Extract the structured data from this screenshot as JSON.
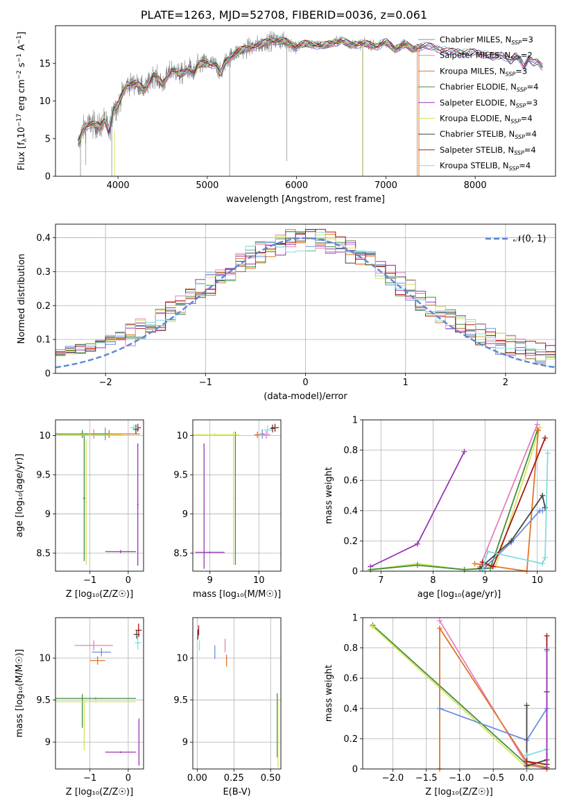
{
  "figure": {
    "title": "PLATE=1263, MJD=52708, FIBERID=0036, z=0.061"
  },
  "colors": {
    "Chabrier MILES": "#6a8fdf",
    "Salpeter MILES": "#e47fc0",
    "Kroupa MILES": "#e07426",
    "Chabrier ELODIE": "#3f8f3f",
    "Salpeter ELODIE": "#9a33b5",
    "Kroupa ELODIE": "#d8e458",
    "Chabrier STELIB": "#444444",
    "Salpeter STELIB": "#a4161a",
    "Kroupa STELIB": "#7fdedd",
    "data": "#808080",
    "normal": "#5b86d8",
    "grid": "#b0b0b0"
  },
  "chart_data": [
    {
      "id": "spectrum",
      "type": "line",
      "xlabel": "wavelength [Angstrom, rest frame]",
      "ylabel": "Flux [f_λ10^-17 erg cm^-2 s^-1 A^-1]",
      "xlim": [
        3300,
        8900
      ],
      "ylim": [
        0,
        20
      ],
      "xticks": [
        4000,
        5000,
        6000,
        7000,
        8000
      ],
      "yticks": [
        0,
        5,
        10,
        15
      ],
      "grid": false,
      "legend_position": "right",
      "legend": [
        {
          "name": "Chabrier MILES",
          "label": "Chabrier MILES, N",
          "nssp": "=3"
        },
        {
          "name": "Salpeter MILES",
          "label": "Salpeter MILES, N",
          "nssp": "=2"
        },
        {
          "name": "Kroupa MILES",
          "label": "Kroupa MILES, N",
          "nssp": "=3"
        },
        {
          "name": "Chabrier ELODIE",
          "label": "Chabrier ELODIE, N",
          "nssp": "=4"
        },
        {
          "name": "Salpeter ELODIE",
          "label": "Salpeter ELODIE, N",
          "nssp": "=3"
        },
        {
          "name": "Kroupa ELODIE",
          "label": "Kroupa ELODIE, N",
          "nssp": "=4"
        },
        {
          "name": "Chabrier STELIB",
          "label": "Chabrier STELIB, N",
          "nssp": "=4"
        },
        {
          "name": "Salpeter STELIB",
          "label": "Salpeter STELIB, N",
          "nssp": "=4"
        },
        {
          "name": "Kroupa STELIB",
          "label": "Kroupa STELIB, N",
          "nssp": "=4"
        }
      ],
      "continuum": {
        "x": [
          3550,
          3600,
          3650,
          3700,
          3800,
          3850,
          3900,
          3950,
          4000,
          4050,
          4100,
          4200,
          4300,
          4400,
          4500,
          4600,
          4700,
          4800,
          4850,
          4900,
          5000,
          5100,
          5150,
          5200,
          5300,
          5400,
          5500,
          5600,
          5700,
          5800,
          5900,
          6000,
          6100,
          6200,
          6300,
          6400,
          6500,
          6600,
          6700,
          6800,
          6900,
          7000,
          7100,
          7200,
          7300,
          7400,
          7500,
          7600,
          7700,
          7800,
          7900,
          8000,
          8100,
          8200,
          8300,
          8400,
          8450,
          8500,
          8550,
          8600,
          8650,
          8700,
          8750
        ],
        "y": [
          4.0,
          6.0,
          6.8,
          7.0,
          6.5,
          7.6,
          5.8,
          9.0,
          9.4,
          11.0,
          12.2,
          12.3,
          11.5,
          13.5,
          12.2,
          14.2,
          13.5,
          14.3,
          13.6,
          14.8,
          15.0,
          14.8,
          13.5,
          15.2,
          16.3,
          16.8,
          17.2,
          17.5,
          18.0,
          18.0,
          17.8,
          17.2,
          17.6,
          17.5,
          17.3,
          17.7,
          18.0,
          17.5,
          17.6,
          17.5,
          17.3,
          17.8,
          16.9,
          17.6,
          16.9,
          17.3,
          17.2,
          16.9,
          16.5,
          16.6,
          16.3,
          16.5,
          16.2,
          15.8,
          16.2,
          15.2,
          16.0,
          15.6,
          14.6,
          15.6,
          15.0,
          15.2,
          14.6
        ]
      },
      "data_range": [
        3550,
        7400
      ]
    },
    {
      "id": "residuals",
      "type": "line",
      "xlabel": "(data-model)/error",
      "ylabel": "Normed distribution",
      "xlim": [
        -2.5,
        2.5
      ],
      "ylim": [
        0,
        0.44
      ],
      "xticks": [
        -2,
        -1,
        0,
        1,
        2
      ],
      "yticks": [
        0.0,
        0.1,
        0.2,
        0.3,
        0.4
      ],
      "grid": true,
      "legend_position": "top-right",
      "legend": [
        {
          "name": "𝒩(0, 1)"
        }
      ],
      "bin_width": 0.1
    },
    {
      "id": "age-vs-Z",
      "type": "scatter",
      "xlabel": "Z [log₁₀(Z/Z☉)]",
      "ylabel": "age  [log₁₀(age/yr)]",
      "xlim": [
        -1.9,
        0.4
      ],
      "ylim": [
        8.27,
        10.2
      ],
      "xticks": [
        -1,
        0
      ],
      "yticks": [
        8.5,
        9.0,
        9.5,
        10.0
      ],
      "grid": true,
      "points": [
        {
          "name": "Chabrier MILES",
          "x": -0.6,
          "y": 10.02,
          "xerr": 0.3,
          "yerr": 0.08
        },
        {
          "name": "Salpeter MILES",
          "x": -0.9,
          "y": 10.02,
          "xerr": 0.4,
          "yerr": 0.06
        },
        {
          "name": "Kroupa MILES",
          "x": -0.5,
          "y": 10.02,
          "xerr": 0.8,
          "yerr": 0.05
        },
        {
          "name": "Chabrier ELODIE",
          "x": -1.2,
          "y": 10.02,
          "xerr": 0.7,
          "yerr": 0.05
        },
        {
          "name": "Chabrier ELODIE",
          "x": -1.15,
          "y": 9.2,
          "xerr": 0.03,
          "yerr": 0.8
        },
        {
          "name": "Kroupa ELODIE",
          "x": -1.1,
          "y": 9.15,
          "xerr": 0.03,
          "yerr": 0.8
        },
        {
          "name": "Kroupa ELODIE",
          "x": -1.0,
          "y": 10.01,
          "xerr": 0.85,
          "yerr": 0.02
        },
        {
          "name": "Salpeter ELODIE",
          "x": 0.25,
          "y": 9.12,
          "xerr": 0.02,
          "yerr": 0.78
        },
        {
          "name": "Salpeter ELODIE",
          "x": -0.2,
          "y": 8.52,
          "xerr": 0.4,
          "yerr": 0.02
        },
        {
          "name": "Chabrier STELIB",
          "x": 0.2,
          "y": 10.08,
          "xerr": 0.08,
          "yerr": 0.06
        },
        {
          "name": "Salpeter STELIB",
          "x": 0.25,
          "y": 10.1,
          "xerr": 0.08,
          "yerr": 0.05
        },
        {
          "name": "Kroupa STELIB",
          "x": 0.15,
          "y": 10.1,
          "xerr": 0.1,
          "yerr": 0.04
        }
      ]
    },
    {
      "id": "age-vs-mass",
      "type": "scatter",
      "xlabel": "mass [log₁₀(M/M☉)]",
      "ylabel": "",
      "xlim": [
        8.65,
        10.45
      ],
      "ylim": [
        8.27,
        10.2
      ],
      "xticks": [
        9,
        10
      ],
      "yticks": [
        8.5,
        9.0,
        9.5,
        10.0
      ],
      "grid": true,
      "points": [
        {
          "name": "Chabrier MILES",
          "x": 10.07,
          "y": 10.02,
          "xerr": 0.05,
          "yerr": 0.06
        },
        {
          "name": "Salpeter MILES",
          "x": 10.15,
          "y": 10.01,
          "xerr": 0.08,
          "yerr": 0.05
        },
        {
          "name": "Kroupa MILES",
          "x": 9.97,
          "y": 10.01,
          "xerr": 0.06,
          "yerr": 0.04
        },
        {
          "name": "Chabrier ELODIE",
          "x": 9.52,
          "y": 9.2,
          "xerr": 0.01,
          "yerr": 0.85
        },
        {
          "name": "Kroupa ELODIE",
          "x": 9.48,
          "y": 9.2,
          "xerr": 0.01,
          "yerr": 0.85
        },
        {
          "name": "Kroupa ELODIE",
          "x": 9.1,
          "y": 10.01,
          "xerr": 0.5,
          "yerr": 0.02
        },
        {
          "name": "Salpeter ELODIE",
          "x": 8.88,
          "y": 9.1,
          "xerr": 0.01,
          "yerr": 0.8
        },
        {
          "name": "Salpeter ELODIE",
          "x": 9.0,
          "y": 8.51,
          "xerr": 0.3,
          "yerr": 0.01
        },
        {
          "name": "Chabrier STELIB",
          "x": 10.28,
          "y": 10.09,
          "xerr": 0.05,
          "yerr": 0.05
        },
        {
          "name": "Salpeter STELIB",
          "x": 10.33,
          "y": 10.1,
          "xerr": 0.08,
          "yerr": 0.05
        },
        {
          "name": "Kroupa STELIB",
          "x": 10.18,
          "y": 10.07,
          "xerr": 0.08,
          "yerr": 0.06
        }
      ]
    },
    {
      "id": "weight-vs-age",
      "type": "line",
      "xlabel": "age  [log₁₀(age/yr)]",
      "ylabel": "mass weight",
      "xlim": [
        6.65,
        10.35
      ],
      "ylim": [
        0,
        1
      ],
      "xticks": [
        7,
        8,
        9,
        10
      ],
      "yticks": [
        0.0,
        0.2,
        0.4,
        0.6,
        0.8,
        1.0
      ],
      "grid": true,
      "series": [
        {
          "name": "Salpeter ELODIE",
          "x": [
            6.8,
            7.7,
            8.6
          ],
          "y": [
            0.03,
            0.18,
            0.79
          ]
        },
        {
          "name": "Kroupa ELODIE",
          "x": [
            6.8,
            7.7,
            8.6,
            9.2,
            10.05
          ],
          "y": [
            0.01,
            0.05,
            0.01,
            0.03,
            0.95
          ]
        },
        {
          "name": "Chabrier ELODIE",
          "x": [
            6.8,
            7.7,
            8.6,
            9.1,
            10.0
          ],
          "y": [
            0.01,
            0.04,
            0.01,
            0.02,
            0.93
          ]
        },
        {
          "name": "Salpeter MILES",
          "x": [
            8.9,
            10.0
          ],
          "y": [
            0.03,
            0.97
          ]
        },
        {
          "name": "Kroupa MILES",
          "x": [
            8.8,
            9.8,
            10.02
          ],
          "y": [
            0.05,
            0.0,
            0.93
          ]
        },
        {
          "name": "Chabrier MILES",
          "x": [
            8.95,
            9.5,
            10.05,
            10.1
          ],
          "y": [
            0.01,
            0.19,
            0.4,
            0.4
          ]
        },
        {
          "name": "Chabrier STELIB",
          "x": [
            8.9,
            9.5,
            10.1,
            10.15
          ],
          "y": [
            0.02,
            0.2,
            0.5,
            0.42
          ]
        },
        {
          "name": "Salpeter STELIB",
          "x": [
            8.95,
            9.15,
            10.15
          ],
          "y": [
            0.06,
            0.03,
            0.88
          ]
        },
        {
          "name": "Kroupa STELIB",
          "x": [
            8.95,
            9.05,
            10.1,
            10.15,
            10.2
          ],
          "y": [
            0.01,
            0.13,
            0.05,
            0.09,
            0.78
          ]
        }
      ]
    },
    {
      "id": "mass-vs-Z",
      "type": "scatter",
      "xlabel": "Z [log₁₀(Z/Z☉)]",
      "ylabel": "mass [log₁₀(M/M☉)]",
      "xlim": [
        -1.9,
        0.4
      ],
      "ylim": [
        8.68,
        10.48
      ],
      "xticks": [
        -1,
        0
      ],
      "yticks": [
        9.0,
        9.5,
        10.0
      ],
      "grid": true,
      "points": [
        {
          "name": "Salpeter MILES",
          "x": -0.9,
          "y": 10.15,
          "xerr": 0.5,
          "yerr": 0.06
        },
        {
          "name": "Chabrier MILES",
          "x": -0.7,
          "y": 10.07,
          "xerr": 0.25,
          "yerr": 0.05
        },
        {
          "name": "Kroupa MILES",
          "x": -0.8,
          "y": 9.97,
          "xerr": 0.2,
          "yerr": 0.05
        },
        {
          "name": "Chabrier ELODIE",
          "x": -0.85,
          "y": 9.52,
          "xerr": 1.05,
          "yerr": 0.01
        },
        {
          "name": "Chabrier ELODIE",
          "x": -1.2,
          "y": 9.37,
          "xerr": 0.01,
          "yerr": 0.2
        },
        {
          "name": "Kroupa ELODIE",
          "x": -0.85,
          "y": 9.48,
          "xerr": 1.05,
          "yerr": 0.01
        },
        {
          "name": "Kroupa ELODIE",
          "x": -1.15,
          "y": 9.2,
          "xerr": 0.01,
          "yerr": 0.3
        },
        {
          "name": "Salpeter ELODIE",
          "x": -0.2,
          "y": 8.88,
          "xerr": 0.4,
          "yerr": 0.01
        },
        {
          "name": "Salpeter ELODIE",
          "x": 0.28,
          "y": 9.0,
          "xerr": 0.01,
          "yerr": 0.28
        },
        {
          "name": "Chabrier STELIB",
          "x": 0.22,
          "y": 10.28,
          "xerr": 0.08,
          "yerr": 0.05
        },
        {
          "name": "Salpeter STELIB",
          "x": 0.27,
          "y": 10.33,
          "xerr": 0.08,
          "yerr": 0.08
        },
        {
          "name": "Kroupa STELIB",
          "x": 0.25,
          "y": 10.18,
          "xerr": 0.08,
          "yerr": 0.08
        }
      ]
    },
    {
      "id": "mass-vs-EBV",
      "type": "scatter",
      "xlabel": "E(B-V)",
      "ylabel": "",
      "xlim": [
        -0.03,
        0.57
      ],
      "ylim": [
        8.68,
        10.48
      ],
      "xticks": [
        0.0,
        0.25,
        0.5
      ],
      "tick_labels": [
        "0.00",
        "0.25",
        "0.50"
      ],
      "yticks": [
        9.0,
        9.5,
        10.0
      ],
      "grid": true,
      "points": [
        {
          "name": "Chabrier STELIB",
          "x": 0.005,
          "y": 10.28,
          "xerr": 0,
          "yerr": 0.06
        },
        {
          "name": "Salpeter STELIB",
          "x": 0.01,
          "y": 10.33,
          "xerr": 0,
          "yerr": 0.06
        },
        {
          "name": "Kroupa STELIB",
          "x": 0.015,
          "y": 10.15,
          "xerr": 0,
          "yerr": 0.06
        },
        {
          "name": "Chabrier MILES",
          "x": 0.12,
          "y": 10.07,
          "xerr": 0,
          "yerr": 0.08
        },
        {
          "name": "Salpeter MILES",
          "x": 0.19,
          "y": 10.15,
          "xerr": 0,
          "yerr": 0.08
        },
        {
          "name": "Kroupa MILES",
          "x": 0.2,
          "y": 9.97,
          "xerr": 0,
          "yerr": 0.07
        },
        {
          "name": "Chabrier ELODIE",
          "x": 0.545,
          "y": 9.2,
          "xerr": 0,
          "yerr": 0.38
        },
        {
          "name": "Kroupa ELODIE",
          "x": 0.55,
          "y": 9.1,
          "xerr": 0,
          "yerr": 0.4
        }
      ]
    },
    {
      "id": "weight-vs-Z",
      "type": "line",
      "xlabel": "Z [log₁₀(Z/Z☉)]",
      "ylabel": "mass weight",
      "xlim": [
        -2.45,
        0.43
      ],
      "ylim": [
        0,
        1
      ],
      "xticks": [
        -2.0,
        -1.5,
        -1.0,
        -0.5,
        0.0
      ],
      "tick_labels": [
        "−2.0",
        "−1.5",
        "−1.0",
        "−0.5",
        "0.0"
      ],
      "yticks": [
        0.0,
        0.2,
        0.4,
        0.6,
        0.8,
        1.0
      ],
      "grid": true,
      "series": [
        {
          "name": "Chabrier ELODIE",
          "x": [
            -2.3,
            0.0,
            0.3
          ],
          "y": [
            0.95,
            0.03,
            0.01
          ]
        },
        {
          "name": "Kroupa ELODIE",
          "x": [
            -2.3,
            0.0,
            0.3
          ],
          "y": [
            0.94,
            0.01,
            0.03
          ]
        },
        {
          "name": "Salpeter MILES",
          "x": [
            -1.3,
            0.0,
            0.3
          ],
          "y": [
            0.98,
            0.03,
            0.0
          ]
        },
        {
          "name": "Kroupa MILES",
          "x": [
            -1.3,
            -1.3,
            0.0,
            0.3
          ],
          "y": [
            0.0,
            0.93,
            0.05,
            0.0
          ]
        },
        {
          "name": "Chabrier MILES",
          "x": [
            -1.3,
            0.0,
            0.3
          ],
          "y": [
            0.4,
            0.19,
            0.4
          ]
        },
        {
          "name": "Chabrier STELIB",
          "x": [
            0.0,
            0.0,
            0.3,
            0.3
          ],
          "y": [
            0.42,
            0.02,
            0.06,
            0.51
          ]
        },
        {
          "name": "Salpeter STELIB",
          "x": [
            0.0,
            0.3,
            0.3
          ],
          "y": [
            0.05,
            0.03,
            0.88
          ]
        },
        {
          "name": "Kroupa STELIB",
          "x": [
            0.0,
            0.3,
            0.3
          ],
          "y": [
            0.09,
            0.13,
            0.78
          ]
        },
        {
          "name": "Salpeter ELODIE",
          "x": [
            0.3,
            0.3
          ],
          "y": [
            0.01,
            0.79
          ]
        }
      ]
    }
  ]
}
